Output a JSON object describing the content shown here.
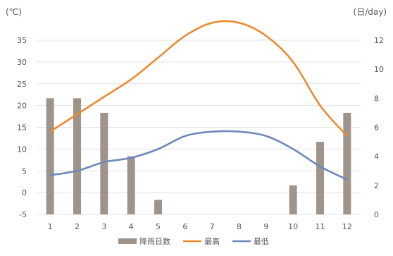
{
  "chart_data": {
    "type": "bar",
    "title": "",
    "xlabel": "",
    "y_left_unit": "(℃)",
    "y_right_unit": "(日/day)",
    "categories": [
      "1",
      "2",
      "3",
      "4",
      "5",
      "6",
      "7",
      "8",
      "9",
      "10",
      "11",
      "12"
    ],
    "y_left": {
      "min": -5,
      "max": 35,
      "ticks": [
        "-5",
        "0",
        "5",
        "10",
        "15",
        "20",
        "25",
        "30",
        "35"
      ]
    },
    "y_right": {
      "min": 0,
      "max": 12,
      "ticks": [
        "0",
        "2",
        "4",
        "6",
        "8",
        "10",
        "12"
      ]
    },
    "grid": true,
    "legend_position": "bottom",
    "series": [
      {
        "name": "降雨日数",
        "type": "bar",
        "axis": "right",
        "color": "#9e948c",
        "values": [
          8,
          8,
          7,
          4,
          1,
          0,
          0,
          0,
          0,
          2,
          5,
          7
        ]
      },
      {
        "name": "最高",
        "type": "line",
        "axis": "left",
        "color": "#ec8a2f",
        "values": [
          14,
          18,
          22,
          26,
          31,
          36,
          39,
          39,
          36,
          30,
          20,
          13
        ]
      },
      {
        "name": "最低",
        "type": "line",
        "axis": "left",
        "color": "#6f87b9",
        "values": [
          4,
          5,
          7,
          8,
          10,
          13,
          14,
          14,
          13,
          10,
          6,
          3
        ]
      }
    ]
  }
}
